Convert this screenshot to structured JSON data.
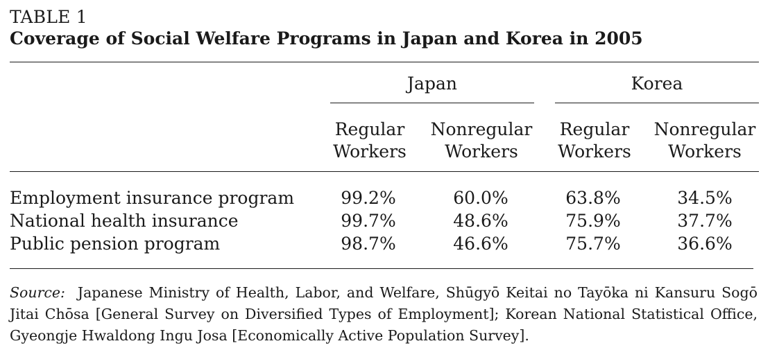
{
  "table": {
    "label": "TABLE 1",
    "title": "Coverage of Social Welfare Programs in Japan and Korea in 2005",
    "groups": [
      {
        "name": "Japan",
        "columns": [
          [
            "Regular",
            "Workers"
          ],
          [
            "Nonregular",
            "Workers"
          ]
        ]
      },
      {
        "name": "Korea",
        "columns": [
          [
            "Regular",
            "Workers"
          ],
          [
            "Nonregular",
            "Workers"
          ]
        ]
      }
    ],
    "rows": [
      {
        "label": "Employment insurance program",
        "values": [
          "99.2%",
          "60.0%",
          "63.8%",
          "34.5%"
        ]
      },
      {
        "label": "National health insurance",
        "values": [
          "99.7%",
          "48.6%",
          "75.9%",
          "37.7%"
        ]
      },
      {
        "label": "Public pension program",
        "values": [
          "98.7%",
          "46.6%",
          "75.7%",
          "36.6%"
        ]
      }
    ],
    "source": {
      "label": "Source:",
      "text": "Japanese Ministry of Health, Labor, and Welfare, Shūgyō Keitai no Tayōka ni Kansuru Sogō Jitai Chōsa [General Survey on Diversified Types of Employment]; Korean National Statistical Office, Gyeongje Hwaldong Ingu Josa [Economically Active Population Survey]."
    }
  }
}
